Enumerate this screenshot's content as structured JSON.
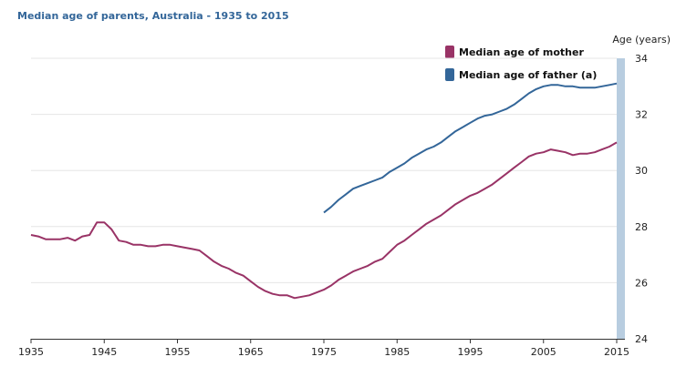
{
  "chart_data": {
    "type": "line",
    "title": "Median age of parents, Australia - 1935 to 2015",
    "xlabel": "",
    "ylabel": "Age (years)",
    "xlim": [
      1935,
      2015
    ],
    "ylim": [
      24,
      34
    ],
    "x_ticks": [
      1935,
      1945,
      1955,
      1965,
      1975,
      1985,
      1995,
      2005,
      2015
    ],
    "y_ticks": [
      24,
      26,
      28,
      30,
      32,
      34
    ],
    "grid": true,
    "legend_position": "top-right",
    "series": [
      {
        "name": "Median age of mother",
        "color": "#993366",
        "x": [
          1935,
          1936,
          1937,
          1938,
          1939,
          1940,
          1941,
          1942,
          1943,
          1944,
          1945,
          1946,
          1947,
          1948,
          1949,
          1950,
          1951,
          1952,
          1953,
          1954,
          1955,
          1956,
          1957,
          1958,
          1959,
          1960,
          1961,
          1962,
          1963,
          1964,
          1965,
          1966,
          1967,
          1968,
          1969,
          1970,
          1971,
          1972,
          1973,
          1974,
          1975,
          1976,
          1977,
          1978,
          1979,
          1980,
          1981,
          1982,
          1983,
          1984,
          1985,
          1986,
          1987,
          1988,
          1989,
          1990,
          1991,
          1992,
          1993,
          1994,
          1995,
          1996,
          1997,
          1998,
          1999,
          2000,
          2001,
          2002,
          2003,
          2004,
          2005,
          2006,
          2007,
          2008,
          2009,
          2010,
          2011,
          2012,
          2013,
          2014,
          2015
        ],
        "values": [
          27.7,
          27.65,
          27.55,
          27.55,
          27.55,
          27.6,
          27.5,
          27.65,
          27.7,
          28.15,
          28.15,
          27.9,
          27.5,
          27.45,
          27.35,
          27.35,
          27.3,
          27.3,
          27.35,
          27.35,
          27.3,
          27.25,
          27.2,
          27.15,
          26.95,
          26.75,
          26.6,
          26.5,
          26.35,
          26.25,
          26.05,
          25.85,
          25.7,
          25.6,
          25.55,
          25.55,
          25.45,
          25.5,
          25.55,
          25.65,
          25.75,
          25.9,
          26.1,
          26.25,
          26.4,
          26.5,
          26.6,
          26.75,
          26.85,
          27.1,
          27.35,
          27.5,
          27.7,
          27.9,
          28.1,
          28.25,
          28.4,
          28.6,
          28.8,
          28.95,
          29.1,
          29.2,
          29.35,
          29.5,
          29.7,
          29.9,
          30.1,
          30.3,
          30.5,
          30.6,
          30.65,
          30.75,
          30.7,
          30.65,
          30.55,
          30.6,
          30.6,
          30.65,
          30.75,
          30.85,
          31.0
        ]
      },
      {
        "name": "Median age of father (a)",
        "color": "#336699",
        "x": [
          1975,
          1976,
          1977,
          1978,
          1979,
          1980,
          1981,
          1982,
          1983,
          1984,
          1985,
          1986,
          1987,
          1988,
          1989,
          1990,
          1991,
          1992,
          1993,
          1994,
          1995,
          1996,
          1997,
          1998,
          1999,
          2000,
          2001,
          2002,
          2003,
          2004,
          2005,
          2006,
          2007,
          2008,
          2009,
          2010,
          2011,
          2012,
          2013,
          2014,
          2015
        ],
        "values": [
          28.5,
          28.7,
          28.95,
          29.15,
          29.35,
          29.45,
          29.55,
          29.65,
          29.75,
          29.95,
          30.1,
          30.25,
          30.45,
          30.6,
          30.75,
          30.85,
          31.0,
          31.2,
          31.4,
          31.55,
          31.7,
          31.85,
          31.95,
          32.0,
          32.1,
          32.2,
          32.35,
          32.55,
          32.75,
          32.9,
          33.0,
          33.05,
          33.05,
          33.0,
          33.0,
          32.95,
          32.95,
          32.95,
          33.0,
          33.05,
          33.1
        ]
      }
    ]
  }
}
